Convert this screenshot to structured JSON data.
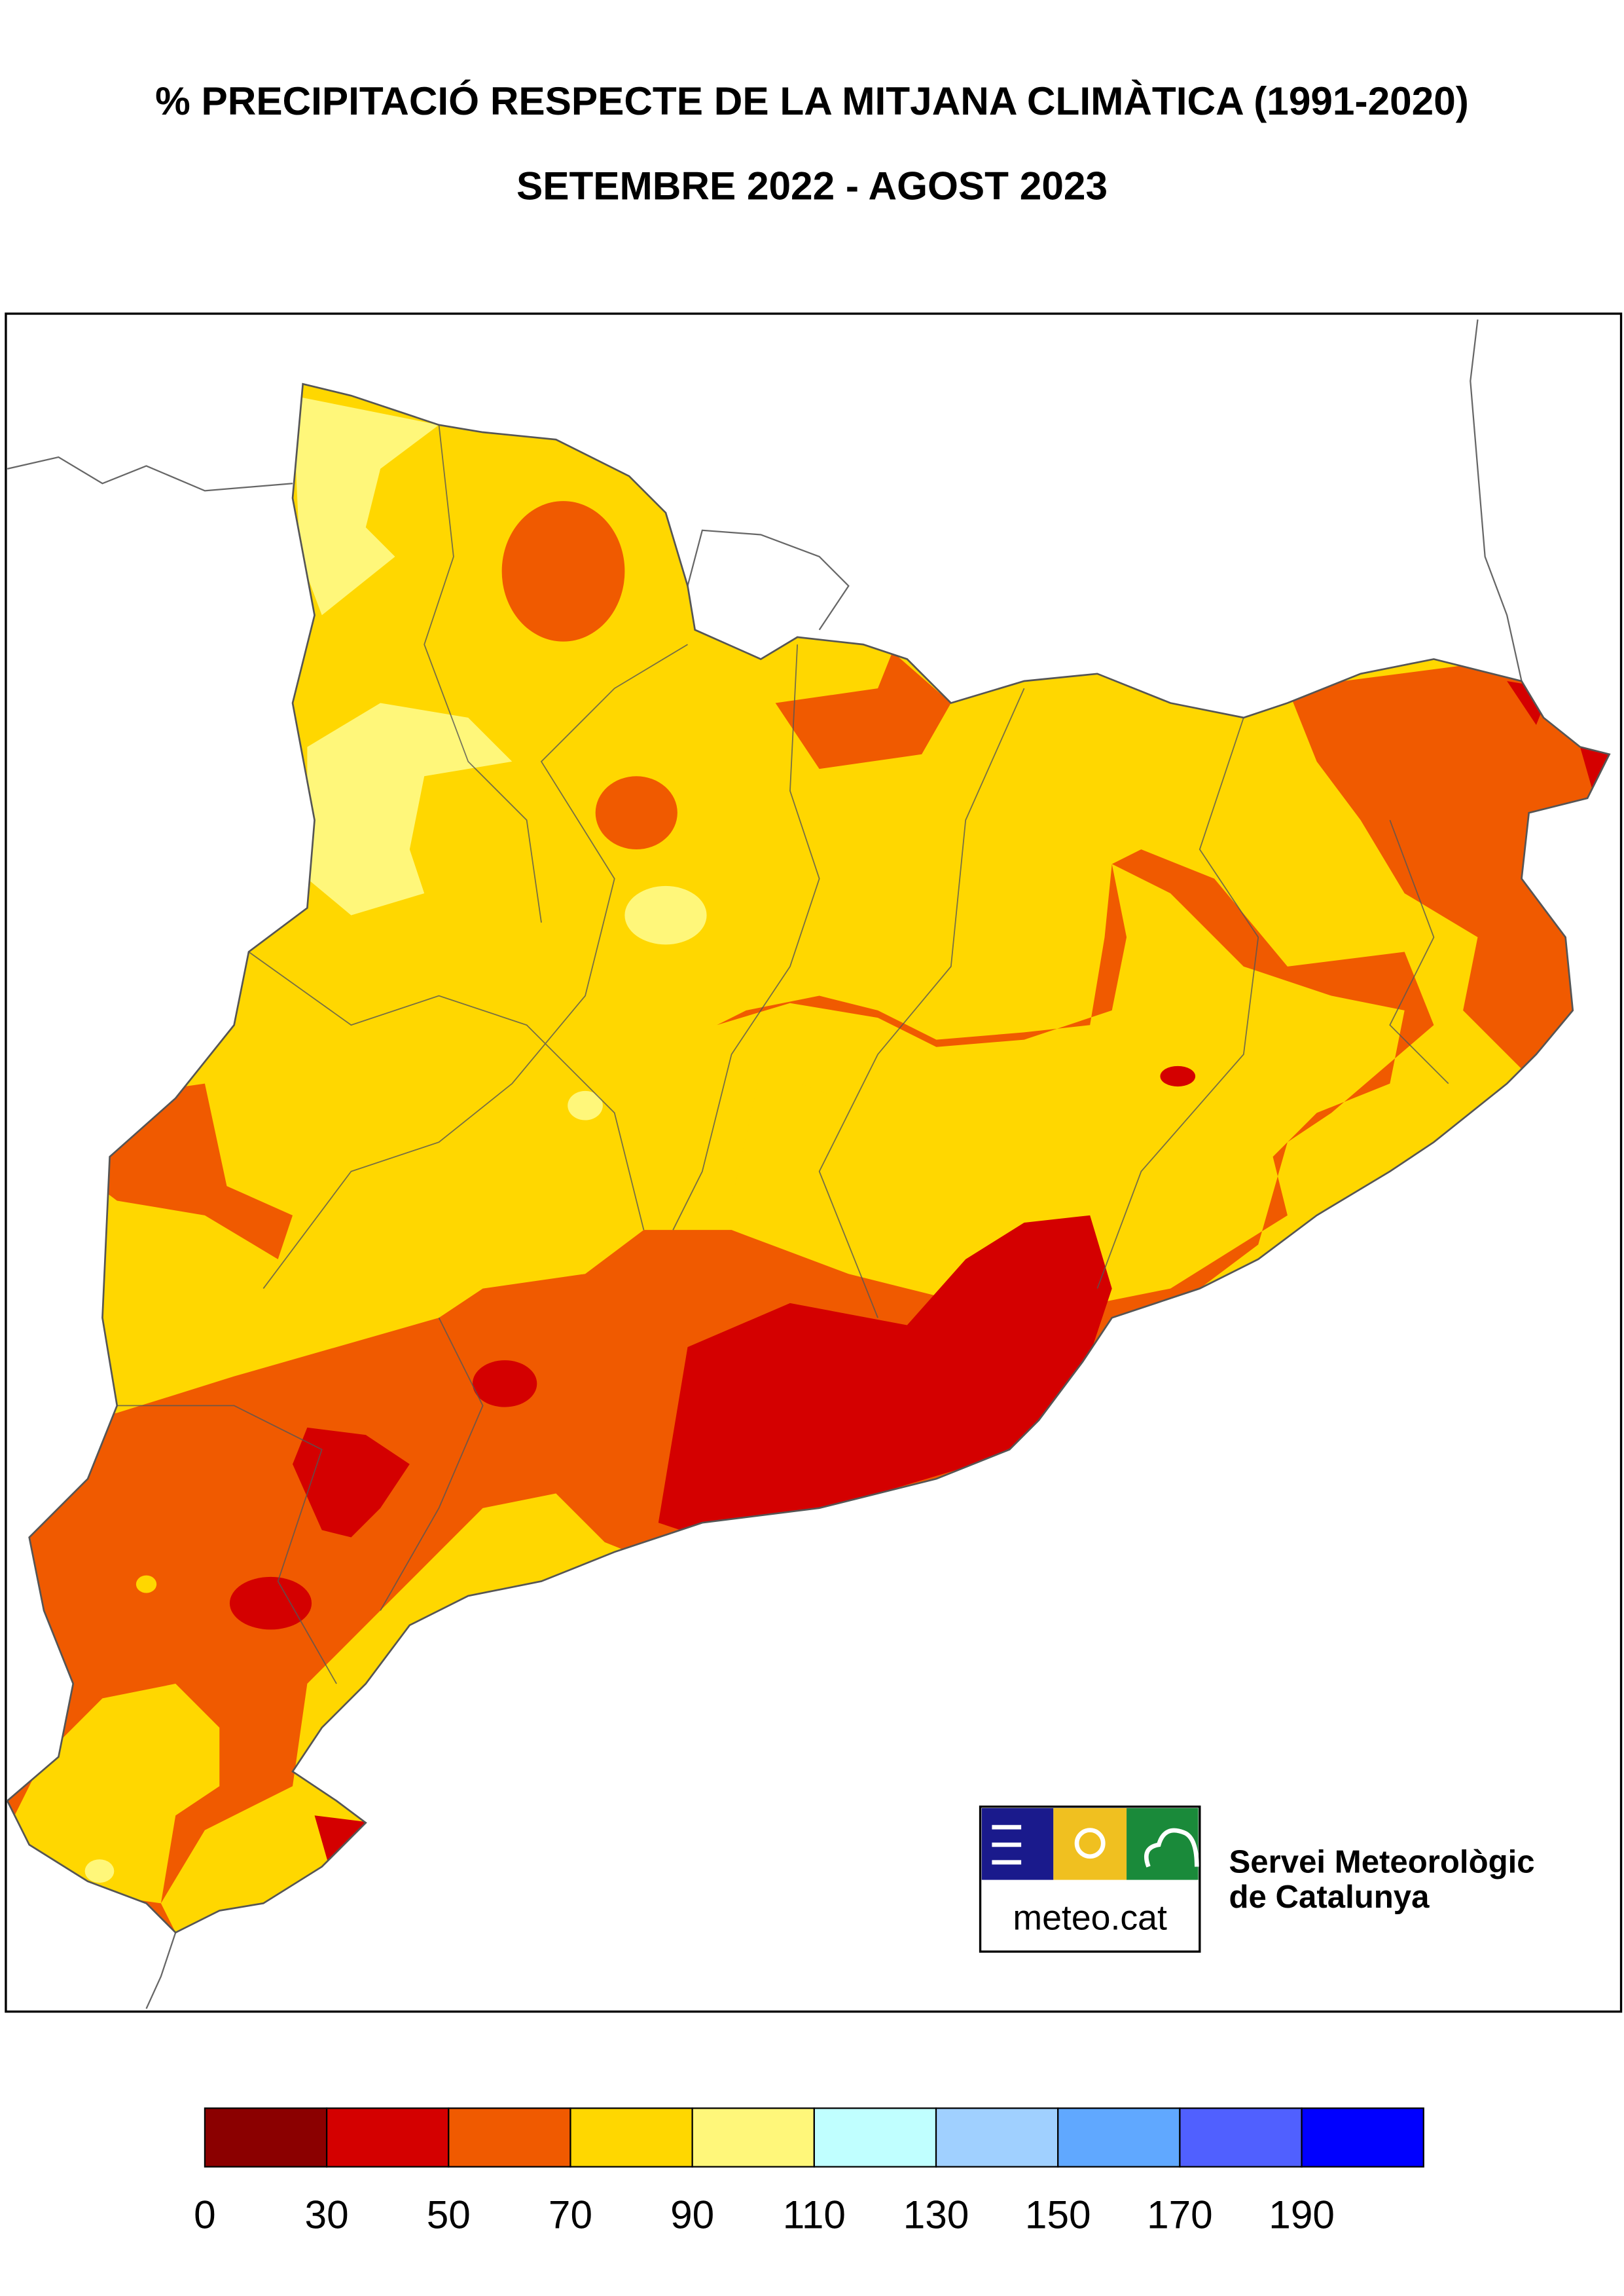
{
  "header": {
    "title": "% PRECIPITACIÓ RESPECTE DE LA MITJANA CLIMÀTICA (1991-2020)",
    "subtitle": "SETEMBRE 2022 - AGOST 2023"
  },
  "logo": {
    "site": "meteo.cat",
    "name_line1": "Servei Meteorològic",
    "name_line2": "de Catalunya"
  },
  "legend": {
    "labels": [
      0,
      30,
      50,
      70,
      90,
      110,
      130,
      150,
      170,
      190
    ],
    "colors": [
      "#8b0000",
      "#d40000",
      "#f05a00",
      "#ffd700",
      "#fff77a",
      "#c0ffff",
      "#a0d0ff",
      "#60a8ff",
      "#5060ff",
      "#0000ff"
    ]
  }
}
